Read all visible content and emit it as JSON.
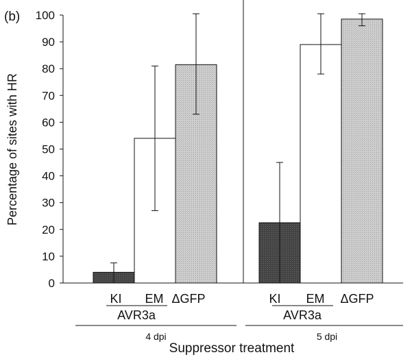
{
  "panel_label": "(b)",
  "chart_data": {
    "type": "bar",
    "ylabel": "Percentage of sites with HR",
    "xlabel": "Suppressor treatment",
    "ylim": [
      0,
      100
    ],
    "yticks": [
      0,
      10,
      20,
      30,
      40,
      50,
      60,
      70,
      80,
      90,
      100
    ],
    "grid": false,
    "groups": [
      {
        "label": "4 dpi",
        "subgroup_label": "AVR3a",
        "bars": [
          {
            "label": "KI",
            "value": 4,
            "error": [
              0,
              7.5
            ],
            "fill": "dark"
          },
          {
            "label": "EM",
            "value": 54,
            "error": [
              27,
              81
            ],
            "fill": "white"
          },
          {
            "label": "ΔGFP",
            "value": 81.5,
            "error": [
              63,
              100.5
            ],
            "fill": "light-gray"
          }
        ]
      },
      {
        "label": "5 dpi",
        "subgroup_label": "AVR3a",
        "bars": [
          {
            "label": "KI",
            "value": 22.5,
            "error": [
              0,
              45
            ],
            "fill": "dark"
          },
          {
            "label": "EM",
            "value": 89,
            "error": [
              78,
              100.5
            ],
            "fill": "white"
          },
          {
            "label": "ΔGFP",
            "value": 98.5,
            "error": [
              96,
              100.5
            ],
            "fill": "light-gray"
          }
        ]
      }
    ]
  },
  "colors": {
    "dark": "#4a4a4a",
    "white": "#ffffff",
    "light-gray": "#c8c8c8",
    "axis": "#111111"
  }
}
